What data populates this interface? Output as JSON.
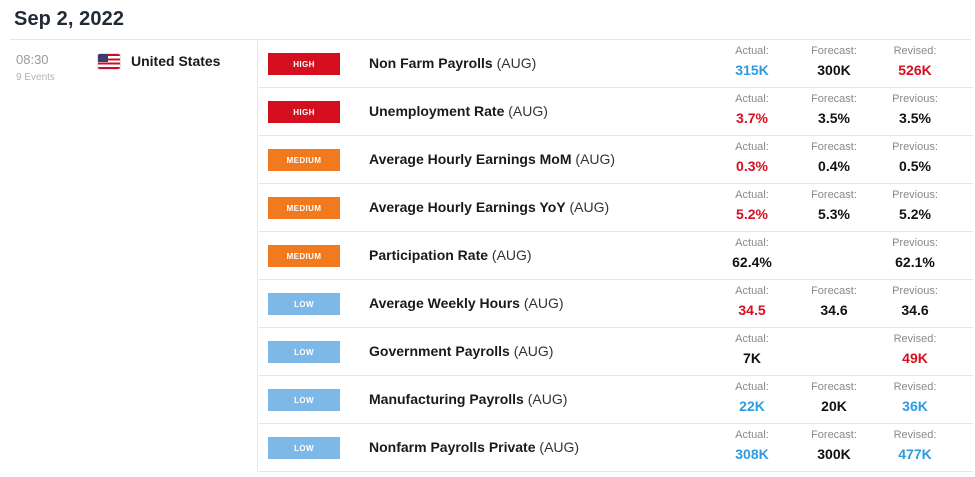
{
  "header": {
    "date": "Sep 2, 2022"
  },
  "group": {
    "time": "08:30",
    "events_count": "9 Events",
    "country": "United States",
    "flag_icon": "us-flag-icon"
  },
  "colors": {
    "high": "#d40f1f",
    "medium": "#f07a1d",
    "low": "#7db8e6",
    "better": "#2d9be0",
    "worse": "#d40f1f",
    "neutral": "#111111"
  },
  "rows": [
    {
      "impact": "HIGH",
      "impact_level": "high",
      "name": "Non Farm Payrolls",
      "period": "(AUG)",
      "actual_label": "Actual:",
      "actual": "315K",
      "actual_color": "blue",
      "forecast_label": "Forecast:",
      "forecast": "300K",
      "third_label": "Revised:",
      "third": "526K",
      "third_color": "red"
    },
    {
      "impact": "HIGH",
      "impact_level": "high",
      "name": "Unemployment Rate",
      "period": "(AUG)",
      "actual_label": "Actual:",
      "actual": "3.7%",
      "actual_color": "red",
      "forecast_label": "Forecast:",
      "forecast": "3.5%",
      "third_label": "Previous:",
      "third": "3.5%",
      "third_color": "black"
    },
    {
      "impact": "MEDIUM",
      "impact_level": "medium",
      "name": "Average Hourly Earnings MoM",
      "period": "(AUG)",
      "actual_label": "Actual:",
      "actual": "0.3%",
      "actual_color": "red",
      "forecast_label": "Forecast:",
      "forecast": "0.4%",
      "third_label": "Previous:",
      "third": "0.5%",
      "third_color": "black"
    },
    {
      "impact": "MEDIUM",
      "impact_level": "medium",
      "name": "Average Hourly Earnings YoY",
      "period": "(AUG)",
      "actual_label": "Actual:",
      "actual": "5.2%",
      "actual_color": "red",
      "forecast_label": "Forecast:",
      "forecast": "5.3%",
      "third_label": "Previous:",
      "third": "5.2%",
      "third_color": "black"
    },
    {
      "impact": "MEDIUM",
      "impact_level": "medium",
      "name": "Participation Rate",
      "period": "(AUG)",
      "actual_label": "Actual:",
      "actual": "62.4%",
      "actual_color": "black",
      "forecast_label": "",
      "forecast": "",
      "third_label": "Previous:",
      "third": "62.1%",
      "third_color": "black"
    },
    {
      "impact": "LOW",
      "impact_level": "low",
      "name": "Average Weekly Hours",
      "period": "(AUG)",
      "actual_label": "Actual:",
      "actual": "34.5",
      "actual_color": "red",
      "forecast_label": "Forecast:",
      "forecast": "34.6",
      "third_label": "Previous:",
      "third": "34.6",
      "third_color": "black"
    },
    {
      "impact": "LOW",
      "impact_level": "low",
      "name": "Government Payrolls",
      "period": "(AUG)",
      "actual_label": "Actual:",
      "actual": "7K",
      "actual_color": "black",
      "forecast_label": "",
      "forecast": "",
      "third_label": "Revised:",
      "third": "49K",
      "third_color": "red"
    },
    {
      "impact": "LOW",
      "impact_level": "low",
      "name": "Manufacturing Payrolls",
      "period": "(AUG)",
      "actual_label": "Actual:",
      "actual": "22K",
      "actual_color": "blue",
      "forecast_label": "Forecast:",
      "forecast": "20K",
      "third_label": "Revised:",
      "third": "36K",
      "third_color": "blue"
    },
    {
      "impact": "LOW",
      "impact_level": "low",
      "name": "Nonfarm Payrolls Private",
      "period": "(AUG)",
      "actual_label": "Actual:",
      "actual": "308K",
      "actual_color": "blue",
      "forecast_label": "Forecast:",
      "forecast": "300K",
      "third_label": "Revised:",
      "third": "477K",
      "third_color": "blue"
    }
  ]
}
